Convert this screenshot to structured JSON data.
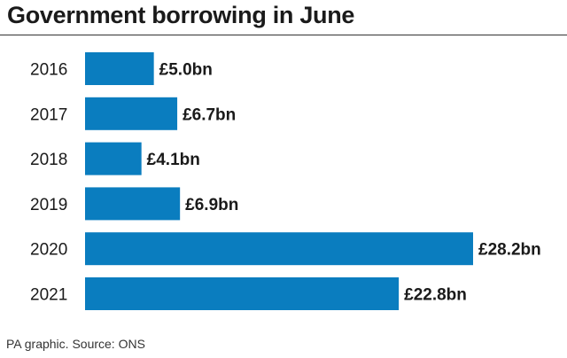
{
  "chart_data": {
    "type": "bar",
    "orientation": "horizontal",
    "title": "Government borrowing in June",
    "categories": [
      "2016",
      "2017",
      "2018",
      "2019",
      "2020",
      "2021"
    ],
    "values": [
      5.0,
      6.7,
      4.1,
      6.9,
      28.2,
      22.8
    ],
    "value_labels": [
      "£5.0bn",
      "£6.7bn",
      "£4.1bn",
      "£6.9bn",
      "£28.2bn",
      "£22.8bn"
    ],
    "xlim": [
      0,
      28.2
    ],
    "grid": false,
    "legend": "none",
    "bar_color": "#0a7dbf"
  },
  "footer": {
    "source": "PA graphic. Source: ONS"
  }
}
